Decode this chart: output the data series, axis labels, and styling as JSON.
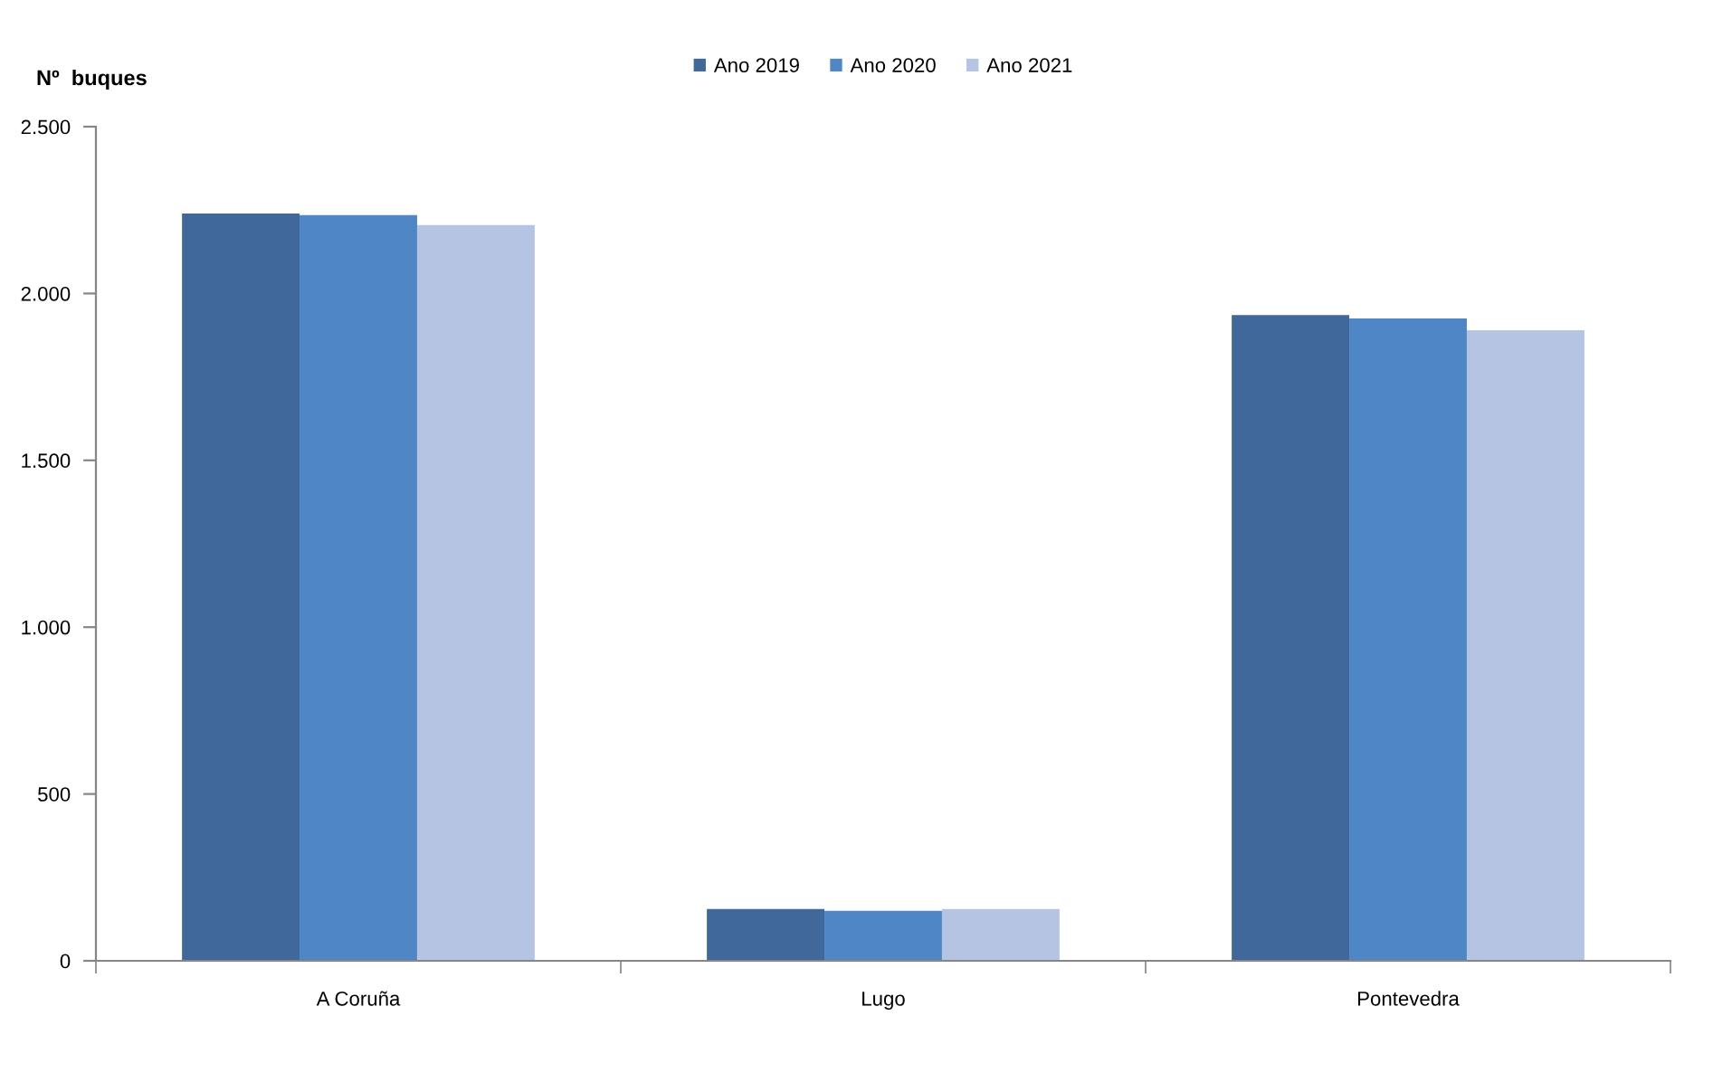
{
  "chart_data": {
    "type": "bar",
    "ylabel": "Nº  buques",
    "categories": [
      "A Coruña",
      "Lugo",
      "Pontevedra"
    ],
    "series": [
      {
        "name": "Ano 2019",
        "color": "#41689a",
        "values": [
          2240,
          155,
          1935
        ]
      },
      {
        "name": "Ano 2020",
        "color": "#4f86c6",
        "values": [
          2235,
          150,
          1925
        ]
      },
      {
        "name": "Ano 2021",
        "color": "#b4c4e2",
        "values": [
          2205,
          155,
          1890
        ]
      }
    ],
    "ylim": [
      0,
      2500
    ],
    "yticks": [
      0,
      500,
      {
        "value": 1000,
        "label": "1.000"
      },
      {
        "value": 1500,
        "label": "1.500"
      },
      {
        "value": 2000,
        "label": "2.000"
      },
      {
        "value": 2500,
        "label": "2.500"
      }
    ],
    "legend": "top"
  }
}
